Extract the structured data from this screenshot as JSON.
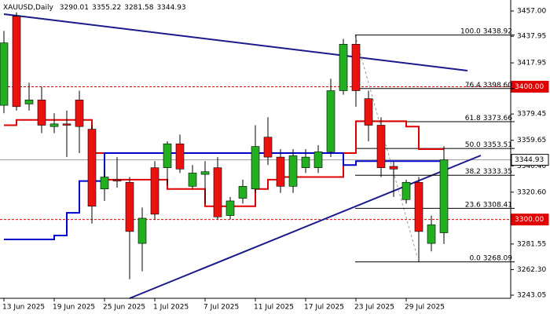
{
  "chart_data": {
    "type": "candlestick",
    "symbol": "XAUUSD,Daily",
    "categories": [
      "13 Jun 2025",
      null,
      null,
      null,
      "19 Jun 2025",
      null,
      null,
      null,
      "25 Jun 2025",
      null,
      null,
      null,
      "1 Jul 2025",
      null,
      null,
      null,
      "7 Jul 2025",
      null,
      null,
      null,
      "11 Jul 2025",
      null,
      null,
      null,
      "17 Jul 2025",
      null,
      null,
      null,
      "23 Jul 2025",
      null,
      null,
      null,
      "29 Jul 2025",
      null,
      null,
      null
    ],
    "open": [
      3386,
      3453,
      3387,
      3390,
      3370,
      3372,
      3390,
      3368,
      3323,
      3330,
      3328,
      3282,
      3339,
      3339,
      3357,
      3325,
      3334,
      3339,
      3303,
      3316,
      3323,
      3362,
      3347,
      3325,
      3339,
      3339,
      3351,
      3397,
      3432,
      3391,
      3371,
      3340,
      3315,
      3328,
      3282,
      3290.01
    ],
    "high": [
      3442,
      3456,
      3403,
      3400,
      3380,
      3382,
      3397,
      3371,
      3338,
      3347,
      3332,
      3309,
      3344,
      3359,
      3364,
      3341,
      3344,
      3347,
      3317,
      3330,
      3371,
      3377,
      3353,
      3353,
      3353,
      3356,
      3406,
      3436,
      3438.92,
      3397,
      3377,
      3344,
      3330,
      3332,
      3303,
      3355.22
    ],
    "low": [
      3380,
      3382,
      3382,
      3365,
      3365,
      3347,
      3350,
      3297,
      3314,
      3324,
      3255,
      3261,
      3300,
      3326,
      3335,
      3323,
      3312,
      3300,
      3300,
      3312,
      3320,
      3341,
      3320,
      3320,
      3335,
      3335,
      3347,
      3394,
      3385,
      3359,
      3332,
      3317,
      3312,
      3268.09,
      3276,
      3281.58
    ],
    "close": [
      3433,
      3385,
      3390,
      3371,
      3372,
      3371,
      3370,
      3310,
      3332,
      3329,
      3291,
      3301,
      3304,
      3357,
      3338,
      3335,
      3336,
      3302,
      3314,
      3325,
      3355,
      3347,
      3325,
      3348,
      3347,
      3351,
      3397,
      3432,
      3397,
      3371,
      3339,
      3338,
      3328,
      3291,
      3296,
      3344.93
    ],
    "up_color": "#22b022",
    "down_color": "#ee1111",
    "lines": [
      {
        "color": "#e00000",
        "values": [
          3371,
          3375,
          3375,
          3375,
          3375,
          3375,
          3375,
          3350,
          3330,
          3330,
          3330,
          3330,
          3330,
          3323,
          3323,
          3323,
          3310,
          3310,
          3310,
          3310,
          3323,
          3330,
          3332,
          3332,
          3332,
          3332,
          3332,
          3350,
          3374,
          3374,
          3374,
          3374,
          3370,
          3353,
          3353,
          3353
        ]
      },
      {
        "color": "#0000cc",
        "values": [
          3285,
          3285,
          3285,
          3285,
          3288,
          3305,
          3329,
          3329,
          3350,
          3350,
          3350,
          3350,
          3350,
          3350,
          3350,
          3350,
          3350,
          3350,
          3350,
          3350,
          3350,
          3350,
          3350,
          3350,
          3350,
          3350,
          3350,
          3341,
          3344,
          3344,
          3344,
          3344,
          3344,
          3344,
          3344,
          3344
        ]
      }
    ],
    "ylim": [
      3243.05,
      3457
    ],
    "yticks": [
      {
        "value": 3457,
        "label": "3457.00"
      },
      {
        "value": 3437.95,
        "label": "3437.95"
      },
      {
        "value": 3417.95,
        "label": "3417.95"
      },
      {
        "value": 3379.45,
        "label": "3379.45"
      },
      {
        "value": 3359.65,
        "label": "3359.65"
      },
      {
        "value": 3340.4,
        "label": "3340.40"
      },
      {
        "value": 3320.6,
        "label": "3320.60"
      },
      {
        "value": 3281.55,
        "label": "3281.55"
      },
      {
        "value": 3262.3,
        "label": "3262.30"
      },
      {
        "value": 3243.05,
        "label": "3243.05"
      }
    ],
    "levels": [
      {
        "value": 3400,
        "label": "3400.00",
        "color": "#e00000"
      },
      {
        "value": 3300,
        "label": "3300.00",
        "color": "#e00000"
      },
      {
        "value": 3344.93,
        "label": "3344.93",
        "color": "#999999"
      }
    ],
    "fibonacci": [
      {
        "level": "100.0",
        "price": {
          "value": 3438.92,
          "label": "3438.92"
        }
      },
      {
        "level": "76.4",
        "price": {
          "value": 3398.6,
          "label": "3398.60"
        }
      },
      {
        "level": "61.8",
        "price": {
          "value": 3373.66,
          "label": "3373.66"
        }
      },
      {
        "level": "50.0",
        "price": {
          "value": 3353.51,
          "label": "3353.51"
        }
      },
      {
        "level": "38.2",
        "price": {
          "value": 3333.35,
          "label": "3333.35"
        }
      },
      {
        "level": "23.6",
        "price": {
          "value": 3308.41,
          "label": "3308.41"
        }
      },
      {
        "level": "0.0",
        "price": {
          "value": 3268.09,
          "label": "3268.09"
        }
      }
    ]
  }
}
